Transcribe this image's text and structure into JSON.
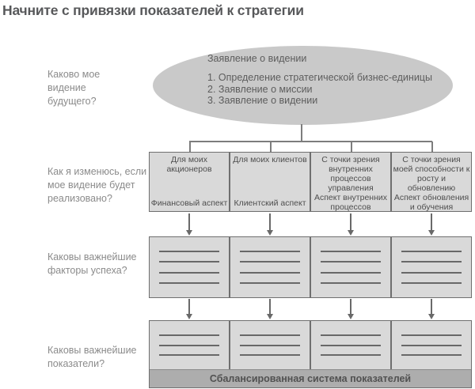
{
  "title": "Начните с привязки показателей к стратегии",
  "questions": [
    {
      "label": "Каково мое видение будущего?"
    },
    {
      "label": "Как я изменюсь, если мое видение будет реализовано?"
    },
    {
      "label": "Каковы важнейшие факторы успеха?"
    },
    {
      "label": "Каковы важнейшие показатели?"
    }
  ],
  "vision": {
    "heading": "Заявление о видении",
    "items": [
      "1. Определение стратегической бизнес-единицы",
      "2. Заявление о миссии",
      "3. Заявление о видении"
    ]
  },
  "perspectives": [
    {
      "audience": "Для моих акционеров",
      "aspect": "Финансовый аспект"
    },
    {
      "audience": "Для моих клиентов",
      "aspect": "Клиентский аспект"
    },
    {
      "audience": "С точки зрения внутренних процессов управления",
      "aspect": "Аспект внутренних процессов"
    },
    {
      "audience": "С точки зрения моей способности к росту и обновлению",
      "aspect": "Аспект обновления и обучения"
    }
  ],
  "success_factors_rows": 4,
  "indicators_rows": 3,
  "footer": {
    "label": "Сбалансированная система показателей"
  },
  "colors": {
    "ellipse_fill": "#c9c9c9",
    "box_fill": "#d9d9d9",
    "footer_fill": "#adadad",
    "border": "#6f6f6f",
    "line": "#686868",
    "title_text": "#57585a",
    "question_text": "#8b8b8b",
    "box_text": "#4e4e4e"
  }
}
